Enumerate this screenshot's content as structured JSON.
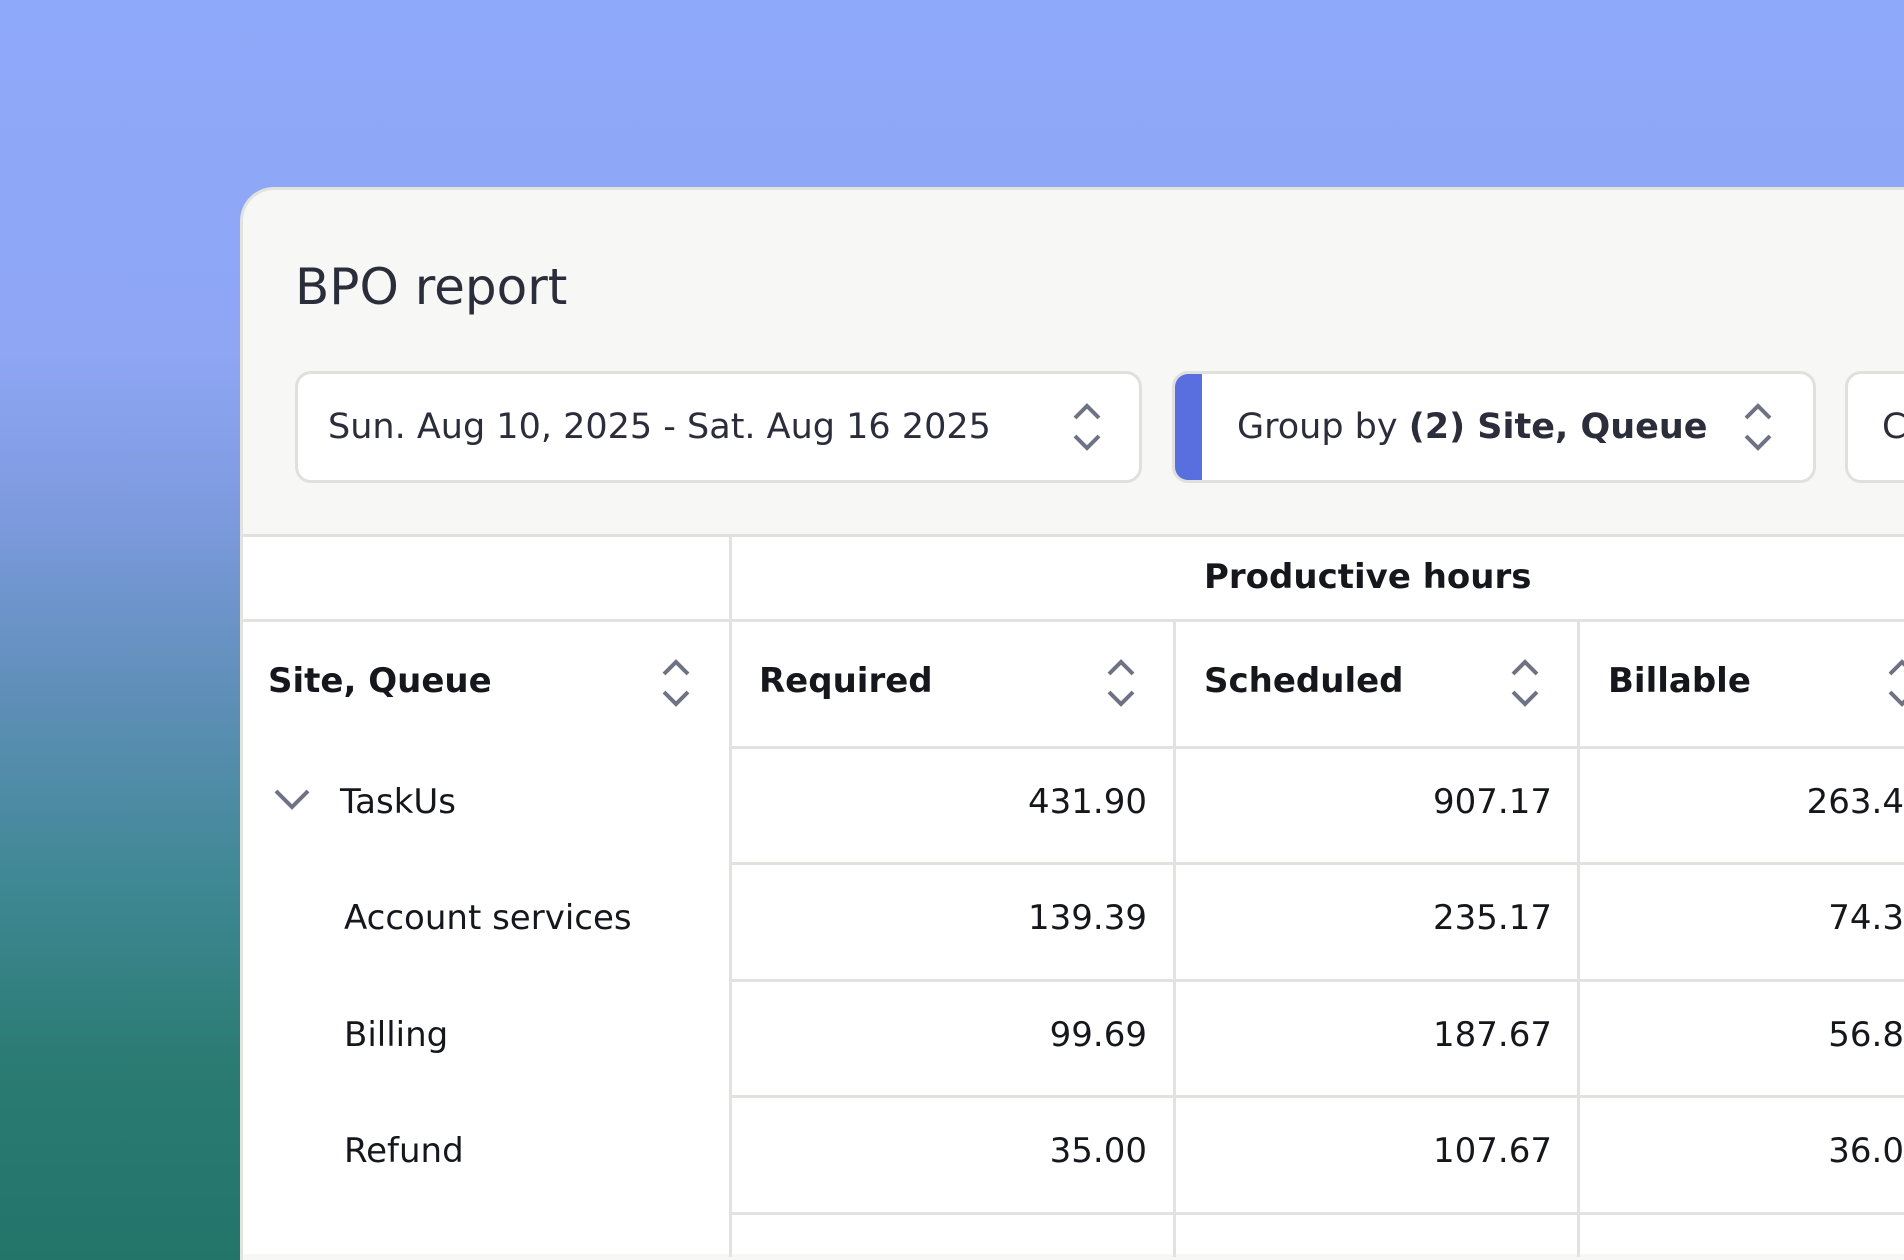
{
  "title": "BPO report",
  "controls": {
    "date_range": "Sun. Aug 10, 2025 - Sat. Aug 16 2025",
    "group_by_prefix": "Group by",
    "group_by_value": "(2) Site, Queue",
    "third_control_partial": "C",
    "accent_color": "#5a6fdf"
  },
  "table": {
    "group_header": "Productive hours",
    "columns": [
      "Site, Queue",
      "Required",
      "Scheduled",
      "Billable"
    ],
    "rows": [
      {
        "label": "TaskUs",
        "expanded": true,
        "values": [
          "431.90",
          "907.17",
          "263.4"
        ]
      },
      {
        "label": "Account services",
        "values": [
          "139.39",
          "235.17",
          "74.3"
        ]
      },
      {
        "label": "Billing",
        "values": [
          "99.69",
          "187.67",
          "56.8"
        ]
      },
      {
        "label": "Refund",
        "values": [
          "35.00",
          "107.67",
          "36.0"
        ]
      }
    ]
  },
  "icons": {
    "sort": "chevron-up-down-icon",
    "expand": "chevron-down-icon"
  }
}
